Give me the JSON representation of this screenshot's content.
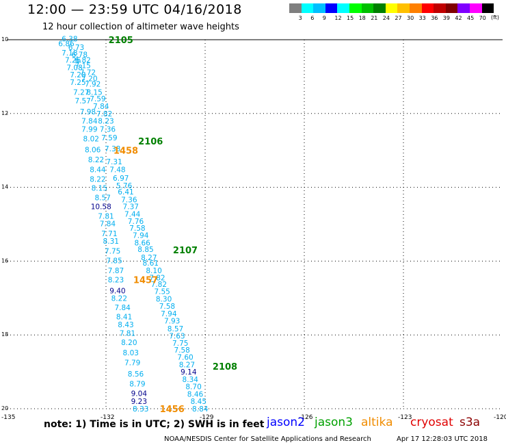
{
  "header": {
    "title": "12:00 — 23:59 UTC 04/16/2018",
    "subtitle": "12 hour collection of altimeter wave heights"
  },
  "legend": {
    "colors": [
      "#7f7f7f",
      "#00ffff",
      "#00bfff",
      "#0000ff",
      "#00ffff",
      "#00ff00",
      "#00c000",
      "#008000",
      "#ffff00",
      "#ffc000",
      "#ff8000",
      "#ff0000",
      "#c00000",
      "#800000",
      "#8000ff",
      "#ff00ff",
      "#000000"
    ],
    "labels": [
      "3",
      "6",
      "9",
      "12",
      "15",
      "18",
      "21",
      "24",
      "27",
      "30",
      "33",
      "36",
      "39",
      "42",
      "45",
      "70"
    ],
    "unit": "(ft)"
  },
  "axes": {
    "lat_labels": [
      "10",
      "12",
      "14",
      "16",
      "18",
      "20"
    ],
    "lon_labels": [
      "-135",
      "-132",
      "-129",
      "-126",
      "-123",
      "-120"
    ]
  },
  "tracks": [
    {
      "color": "#00aeef",
      "points": [
        {
          "v": "6.38",
          "lon": -133.1,
          "lat": -9.97
        },
        {
          "v": "6.86",
          "lon": -133.2,
          "lat": -10.1
        },
        {
          "v": "6.73",
          "lon": -132.9,
          "lat": -10.2
        },
        {
          "v": "7.18",
          "lon": -133.1,
          "lat": -10.35
        },
        {
          "v": "6.78",
          "lon": -132.8,
          "lat": -10.4
        },
        {
          "v": "7.26",
          "lon": -133.0,
          "lat": -10.55
        },
        {
          "v": "6.82",
          "lon": -132.7,
          "lat": -10.55
        },
        {
          "v": "7.08",
          "lon": -132.95,
          "lat": -10.75
        },
        {
          "v": "7.15",
          "lon": -132.7,
          "lat": -10.7
        },
        {
          "v": "7.72",
          "lon": -132.55,
          "lat": -10.88
        },
        {
          "v": "7.28",
          "lon": -132.85,
          "lat": -10.95
        },
        {
          "v": "7.20",
          "lon": -132.5,
          "lat": -11.05
        },
        {
          "v": "7.25",
          "lon": -132.85,
          "lat": -11.15
        },
        {
          "v": "7.92",
          "lon": -132.4,
          "lat": -11.2
        },
        {
          "v": "7.27",
          "lon": -132.75,
          "lat": -11.42
        },
        {
          "v": "8.15",
          "lon": -132.35,
          "lat": -11.42
        },
        {
          "v": "7.57",
          "lon": -132.7,
          "lat": -11.65
        },
        {
          "v": "7.59",
          "lon": -132.25,
          "lat": -11.6
        },
        {
          "v": "7.84",
          "lon": -132.15,
          "lat": -11.8
        },
        {
          "v": "7.98",
          "lon": -132.55,
          "lat": -11.95
        },
        {
          "v": "7.82",
          "lon": -132.05,
          "lat": -12.0
        },
        {
          "v": "7.84",
          "lon": -132.5,
          "lat": -12.2
        },
        {
          "v": "8.23",
          "lon": -132.0,
          "lat": -12.2
        },
        {
          "v": "7.99",
          "lon": -132.5,
          "lat": -12.42
        },
        {
          "v": "7.36",
          "lon": -131.95,
          "lat": -12.42
        },
        {
          "v": "8.02",
          "lon": -132.45,
          "lat": -12.68
        },
        {
          "v": "7.59",
          "lon": -131.9,
          "lat": -12.65
        },
        {
          "v": "8.06",
          "lon": -132.4,
          "lat": -12.98
        },
        {
          "v": "7.38",
          "lon": -131.8,
          "lat": -12.95
        },
        {
          "v": "7.31",
          "lon": -131.75,
          "lat": -13.3
        },
        {
          "v": "8.22",
          "lon": -132.3,
          "lat": -13.25
        },
        {
          "v": "7.48",
          "lon": -131.65,
          "lat": -13.52
        },
        {
          "v": "8.44",
          "lon": -132.25,
          "lat": -13.52
        },
        {
          "v": "6.97",
          "lon": -131.55,
          "lat": -13.75
        },
        {
          "v": "8.22",
          "lon": -132.25,
          "lat": -13.78
        },
        {
          "v": "5.76",
          "lon": -131.45,
          "lat": -13.95
        },
        {
          "v": "8.15",
          "lon": -132.2,
          "lat": -14.02
        },
        {
          "v": "6.41",
          "lon": -131.4,
          "lat": -14.12
        },
        {
          "v": "8.57",
          "lon": -132.1,
          "lat": -14.28
        },
        {
          "v": "7.36",
          "lon": -131.3,
          "lat": -14.33
        },
        {
          "v": "7.37",
          "lon": -131.25,
          "lat": -14.52
        },
        {
          "v": "7.81",
          "lon": -132.0,
          "lat": -14.78
        },
        {
          "v": "7.44",
          "lon": -131.2,
          "lat": -14.72
        },
        {
          "v": "7.84",
          "lon": -131.95,
          "lat": -14.98
        },
        {
          "v": "7.76",
          "lon": -131.1,
          "lat": -14.92
        },
        {
          "v": "7.58",
          "lon": -131.05,
          "lat": -15.1
        },
        {
          "v": "7.71",
          "lon": -131.9,
          "lat": -15.25
        },
        {
          "v": "7.94",
          "lon": -130.95,
          "lat": -15.3
        },
        {
          "v": "8.31",
          "lon": -131.85,
          "lat": -15.45
        },
        {
          "v": "8.66",
          "lon": -130.9,
          "lat": -15.5
        },
        {
          "v": "8.85",
          "lon": -130.8,
          "lat": -15.68
        },
        {
          "v": "7.75",
          "lon": -131.8,
          "lat": -15.72
        },
        {
          "v": "8.27",
          "lon": -130.7,
          "lat": -15.9
        },
        {
          "v": "7.85",
          "lon": -131.75,
          "lat": -15.98
        },
        {
          "v": "8.61",
          "lon": -130.65,
          "lat": -16.05
        },
        {
          "v": "7.87",
          "lon": -131.7,
          "lat": -16.25
        },
        {
          "v": "8.10",
          "lon": -130.55,
          "lat": -16.25
        },
        {
          "v": "7.82",
          "lon": -130.45,
          "lat": -16.45
        },
        {
          "v": "8.23",
          "lon": -131.7,
          "lat": -16.5
        },
        {
          "v": "7.82",
          "lon": -130.4,
          "lat": -16.62
        },
        {
          "v": "7.55",
          "lon": -130.3,
          "lat": -16.82
        },
        {
          "v": "8.22",
          "lon": -131.6,
          "lat": -17.0
        },
        {
          "v": "8.30",
          "lon": -130.25,
          "lat": -17.02
        },
        {
          "v": "7.58",
          "lon": -130.15,
          "lat": -17.22
        },
        {
          "v": "7.84",
          "lon": -131.5,
          "lat": -17.25
        },
        {
          "v": "7.94",
          "lon": -130.1,
          "lat": -17.42
        },
        {
          "v": "8.41",
          "lon": -131.45,
          "lat": -17.5
        },
        {
          "v": "7.93",
          "lon": -130.0,
          "lat": -17.62
        },
        {
          "v": "8.43",
          "lon": -131.4,
          "lat": -17.72
        },
        {
          "v": "8.57",
          "lon": -129.9,
          "lat": -17.83
        },
        {
          "v": "7.81",
          "lon": -131.35,
          "lat": -17.95
        },
        {
          "v": "7.63",
          "lon": -129.85,
          "lat": -18.02
        },
        {
          "v": "8.20",
          "lon": -131.3,
          "lat": -18.2
        },
        {
          "v": "7.75",
          "lon": -129.75,
          "lat": -18.22
        },
        {
          "v": "7.58",
          "lon": -129.7,
          "lat": -18.4
        },
        {
          "v": "8.03",
          "lon": -131.25,
          "lat": -18.48
        },
        {
          "v": "7.60",
          "lon": -129.6,
          "lat": -18.6
        },
        {
          "v": "7.79",
          "lon": -131.2,
          "lat": -18.75
        },
        {
          "v": "8.27",
          "lon": -129.55,
          "lat": -18.8
        },
        {
          "v": "8.56",
          "lon": -131.1,
          "lat": -19.05
        },
        {
          "v": "8.34",
          "lon": -129.45,
          "lat": -19.2
        },
        {
          "v": "8.79",
          "lon": -131.05,
          "lat": -19.32
        },
        {
          "v": "8.70",
          "lon": -129.35,
          "lat": -19.4
        },
        {
          "v": "8.46",
          "lon": -129.3,
          "lat": -19.6
        },
        {
          "v": "8.45",
          "lon": -129.2,
          "lat": -19.8
        },
        {
          "v": "8.33",
          "lon": -130.95,
          "lat": -20.0
        },
        {
          "v": "8.84",
          "lon": -129.15,
          "lat": -20.0
        }
      ]
    },
    {
      "color": "#00008b",
      "points": [
        {
          "v": "10.58",
          "lon": -132.15,
          "lat": -14.52
        },
        {
          "v": "9.40",
          "lon": -131.65,
          "lat": -16.8
        },
        {
          "v": "9.14",
          "lon": -129.5,
          "lat": -19.0
        },
        {
          "v": "9.04",
          "lon": -131.0,
          "lat": -19.58
        },
        {
          "v": "9.23",
          "lon": -131.0,
          "lat": -19.8
        }
      ]
    }
  ],
  "time_labels": [
    {
      "t": "2105",
      "color": "#008000",
      "lon": -131.55,
      "lat": -10.0
    },
    {
      "t": "2106",
      "color": "#008000",
      "lon": -130.65,
      "lat": -12.75
    },
    {
      "t": "1458",
      "color": "#f08c00",
      "lon": -131.4,
      "lat": -13.0
    },
    {
      "t": "2107",
      "color": "#008000",
      "lon": -129.6,
      "lat": -15.7
    },
    {
      "t": "1457",
      "color": "#f08c00",
      "lon": -130.8,
      "lat": -16.5
    },
    {
      "t": "2108",
      "color": "#008000",
      "lon": -128.4,
      "lat": -18.85
    },
    {
      "t": "1456",
      "color": "#f08c00",
      "lon": -130.0,
      "lat": -20.0
    }
  ],
  "footer": {
    "note": "note: 1) Time is in UTC; 2) SWH is in feet",
    "satellites": [
      {
        "name": "jason2",
        "color": "#0000ff"
      },
      {
        "name": "jason3",
        "color": "#00a000"
      },
      {
        "name": "altika",
        "color": "#f08c00"
      },
      {
        "name": "cryosat",
        "color": "#e00000"
      },
      {
        "name": "s3a",
        "color": "#8b0000"
      }
    ],
    "center": "NOAA/NESDIS Center for Satellite Applications and Research",
    "timestamp": "Apr 17 12:28:03 UTC 2018"
  }
}
